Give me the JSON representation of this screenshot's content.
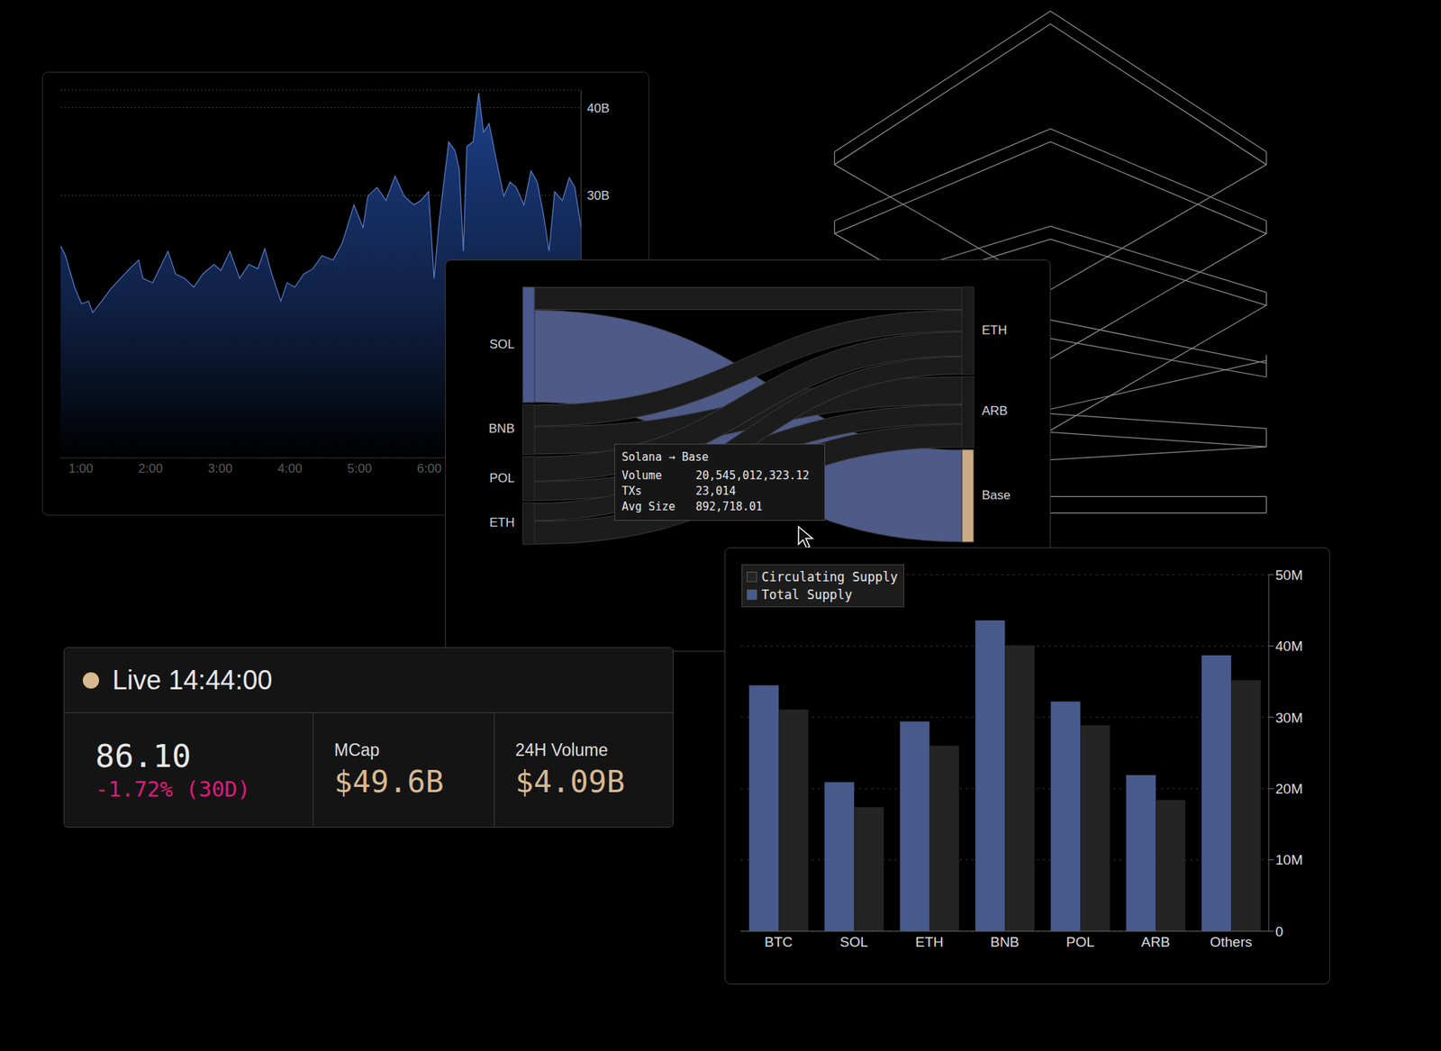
{
  "chart_data": [
    {
      "type": "area",
      "x": [
        0.71,
        0.78,
        0.91,
        1.01,
        1.11,
        1.17,
        1.3,
        1.43,
        1.57,
        1.7,
        1.83,
        1.89,
        2.03,
        2.16,
        2.25,
        2.36,
        2.49,
        2.62,
        2.75,
        2.91,
        3.01,
        3.14,
        3.28,
        3.41,
        3.54,
        3.64,
        3.74,
        3.87,
        3.96,
        4.07,
        4.2,
        4.33,
        4.46,
        4.62,
        4.75,
        4.92,
        5.05,
        5.12,
        5.25,
        5.38,
        5.51,
        5.64,
        5.78,
        5.88,
        5.99,
        6.07,
        6.14,
        6.28,
        6.37,
        6.43,
        6.49,
        6.54,
        6.63,
        6.71,
        6.78,
        6.86,
        6.96,
        7.07,
        7.16,
        7.25,
        7.36,
        7.46,
        7.55,
        7.64,
        7.72,
        7.8,
        7.91,
        8.01,
        8.09,
        8.18
      ],
      "values": [
        24.2,
        23.1,
        19.5,
        17.6,
        17.9,
        16.6,
        17.9,
        19.3,
        20.5,
        21.6,
        22.6,
        20.5,
        20.0,
        22.1,
        23.6,
        21.0,
        20.5,
        19.5,
        21.0,
        22.1,
        21.4,
        23.6,
        20.5,
        22.1,
        21.6,
        23.9,
        21.0,
        17.9,
        20.0,
        19.5,
        21.0,
        21.6,
        23.1,
        22.6,
        24.5,
        28.9,
        26.3,
        29.9,
        30.9,
        29.4,
        32.2,
        29.9,
        28.9,
        29.4,
        30.4,
        20.5,
        26.8,
        36.1,
        35.1,
        33.0,
        23.6,
        35.6,
        36.1,
        41.7,
        37.2,
        38.2,
        34.1,
        29.9,
        31.5,
        30.9,
        28.9,
        32.8,
        31.5,
        27.8,
        23.6,
        30.4,
        29.4,
        32.0,
        30.9,
        26.3
      ],
      "color": "#5a7dc8",
      "xlim": [
        0.71,
        8.18
      ],
      "xticks": [
        {
          "value": 1,
          "label": "1:00"
        },
        {
          "value": 2,
          "label": "2:00"
        },
        {
          "value": 3,
          "label": "3:00"
        },
        {
          "value": 4,
          "label": "4:00"
        },
        {
          "value": 5,
          "label": "5:00"
        },
        {
          "value": 6,
          "label": "6:00"
        }
      ],
      "ylim": [
        0,
        42
      ],
      "yticks": [
        {
          "value": 30,
          "label": "30B"
        },
        {
          "value": 40,
          "label": "40B"
        }
      ],
      "grid": true
    },
    {
      "type": "sankey",
      "nodes": [
        {
          "name": "SOL",
          "color": "#4a5a8f"
        },
        {
          "name": "BNB",
          "color": "#1a1a1a"
        },
        {
          "name": "POL",
          "color": "#1a1a1a"
        },
        {
          "name": "ETH",
          "color": "#1a1a1a"
        },
        {
          "name": "ETH",
          "color": "#1a1a1a"
        },
        {
          "name": "ARB",
          "color": "#1a1a1a"
        },
        {
          "name": "Base",
          "color": "#c9ab86"
        }
      ],
      "links": [
        {
          "source": 0,
          "target": 6,
          "value": 20545012323.12,
          "color": "#4e5a88"
        },
        {
          "source": 0,
          "target": 4,
          "value": 5100000000,
          "color": "#1c1c1c"
        },
        {
          "source": 1,
          "target": 5,
          "value": 6200000000,
          "color": "#1c1c1c"
        },
        {
          "source": 1,
          "target": 4,
          "value": 4800000000,
          "color": "#1c1c1c"
        },
        {
          "source": 2,
          "target": 4,
          "value": 5500000000,
          "color": "#1c1c1c"
        },
        {
          "source": 2,
          "target": 5,
          "value": 4300000000,
          "color": "#1c1c1c"
        },
        {
          "source": 3,
          "target": 4,
          "value": 4000000000,
          "color": "#1c1c1c"
        },
        {
          "source": 3,
          "target": 5,
          "value": 5200000000,
          "color": "#1c1c1c"
        }
      ],
      "tooltip": {
        "title": "Solana → Base",
        "rows": [
          {
            "label": "Volume",
            "value": "20,545,012,323.12"
          },
          {
            "label": "TXs",
            "value": "23,014"
          },
          {
            "label": "Avg Size",
            "value": "892,718.01"
          }
        ]
      }
    },
    {
      "type": "bar",
      "categories": [
        "BTC",
        "SOL",
        "ETH",
        "BNB",
        "POL",
        "ARB",
        "Others"
      ],
      "series": [
        {
          "name": "Circulating Supply",
          "color": "#242424",
          "values": [
            31.1,
            17.4,
            26.0,
            40.1,
            28.9,
            18.4,
            35.2
          ]
        },
        {
          "name": "Total Supply",
          "color": "#485a8c",
          "values": [
            34.5,
            20.9,
            29.4,
            43.6,
            32.2,
            21.9,
            38.7
          ]
        }
      ],
      "ylim": [
        0,
        50
      ],
      "yticks": [
        0,
        {
          "value": 10,
          "label": "10M"
        },
        {
          "value": 20,
          "label": "20M"
        },
        {
          "value": 30,
          "label": "30M"
        },
        {
          "value": 40,
          "label": "40M"
        },
        {
          "value": 50,
          "label": "50M"
        }
      ],
      "grid": true,
      "legend": "upper left"
    }
  ],
  "stat_card": {
    "header": "Live 14:44:00",
    "price": "86.10",
    "change": "-1.72% (30D)",
    "stats": [
      {
        "label": "MCap",
        "value": "$49.6B"
      },
      {
        "label": "24H Volume",
        "value": "$4.09B"
      }
    ]
  }
}
